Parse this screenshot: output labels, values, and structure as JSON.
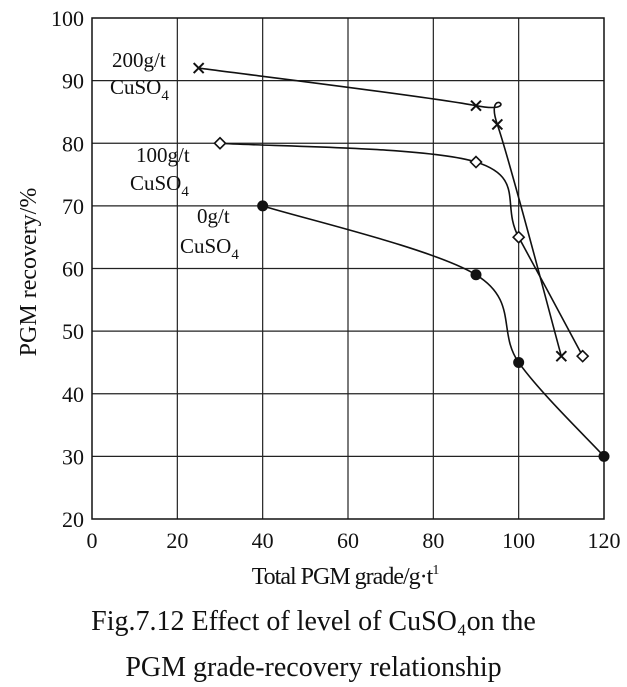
{
  "chart_data": {
    "type": "line",
    "title": "",
    "xlabel": "Total PGM grade/g·t",
    "xlabel_superscript": "1",
    "ylabel": "PGM recovery/%",
    "xlim": [
      0,
      120
    ],
    "ylim": [
      20,
      100
    ],
    "xticks": [
      0,
      20,
      40,
      60,
      80,
      100,
      120
    ],
    "yticks": [
      20,
      30,
      40,
      50,
      60,
      70,
      80,
      90,
      100
    ],
    "grid": true,
    "series": [
      {
        "name": "200g/t CuSO4",
        "label_line1": "200g/t",
        "label_line2": "CuSO",
        "label_sub": "4",
        "marker": "x",
        "x": [
          25,
          90,
          95,
          110
        ],
        "y": [
          92,
          86,
          83,
          46
        ]
      },
      {
        "name": "100g/t CuSO4",
        "label_line1": "100g/t",
        "label_line2": "CuSO",
        "label_sub": "4",
        "marker": "diamond",
        "x": [
          30,
          90,
          100,
          115
        ],
        "y": [
          80,
          77,
          65,
          46
        ]
      },
      {
        "name": "0g/t CuSO4",
        "label_line1": "0g/t",
        "label_line2": "CuSO",
        "label_sub": "4",
        "marker": "circle",
        "x": [
          40,
          90,
          100,
          120
        ],
        "y": [
          70,
          59,
          45,
          30
        ]
      }
    ]
  },
  "caption": {
    "line1": "Fig.7.12 Effect of level of CuSO₄on the",
    "line2": "PGM grade-recovery relationship"
  }
}
